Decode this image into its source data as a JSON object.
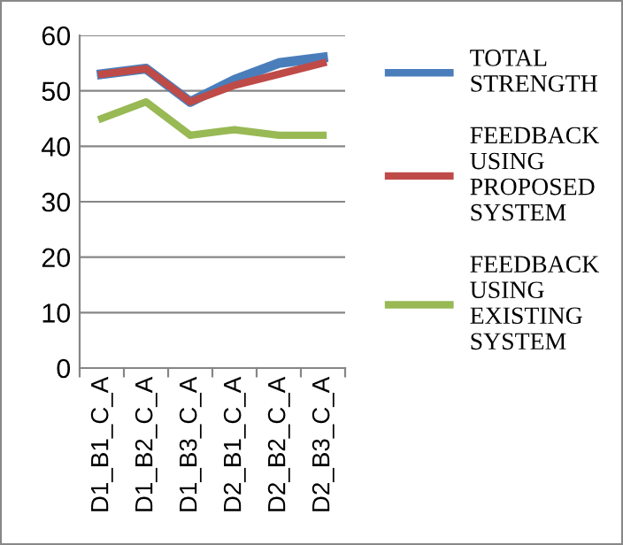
{
  "chart_data": {
    "type": "line",
    "categories": [
      "D1_B1_C_A",
      "D1_B2_C_A",
      "D1_B3_C_A",
      "D2_B1_C_A",
      "D2_B2_C_A",
      "D2_B3_C_A"
    ],
    "series": [
      {
        "name": "TOTAL STRENGTH",
        "color": "#4a7ebb",
        "values": [
          53,
          54,
          48,
          52,
          55,
          56
        ]
      },
      {
        "name": "FEEDBACK USING PROPOSED SYSTEM",
        "color": "#be4b48",
        "values": [
          53,
          54,
          48,
          51,
          53,
          55
        ]
      },
      {
        "name": "FEEDBACK USING EXISTING SYSTEM",
        "color": "#98b954",
        "values": [
          45,
          48,
          42,
          43,
          42,
          42
        ]
      }
    ],
    "ylim": [
      0,
      60
    ],
    "yticks": [
      0,
      10,
      20,
      30,
      40,
      50,
      60
    ],
    "grid": "y",
    "legend": "right",
    "marker": "none",
    "line_style": "solid"
  }
}
